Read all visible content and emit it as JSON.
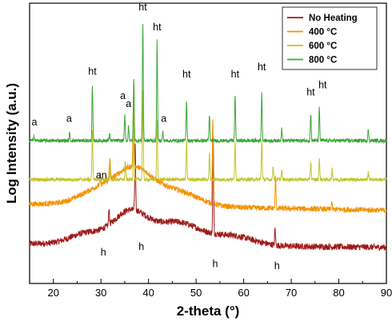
{
  "chart_data": {
    "type": "line",
    "xlabel": "2-theta (°)",
    "ylabel": "Log Intensity (a.u.)",
    "xlim": [
      15,
      90
    ],
    "xticks": [
      20,
      30,
      40,
      50,
      60,
      70,
      80,
      90
    ],
    "y_ticks_shown": false,
    "legend_position": "top-right",
    "series": [
      {
        "name": "No Heating",
        "color": "#a01818",
        "baseline": 0.4,
        "noise": 0.35,
        "humps": [
          {
            "x": 27,
            "amp": 1.2,
            "w": 5
          },
          {
            "x": 36,
            "amp": 3.5,
            "w": 5
          },
          {
            "x": 46,
            "amp": 2.5,
            "w": 7
          },
          {
            "x": 58,
            "amp": 1.0,
            "w": 6
          }
        ],
        "peaks": [
          {
            "x": 31.7,
            "h": 1.8
          },
          {
            "x": 37.2,
            "h": 7.5
          },
          {
            "x": 53.6,
            "h": 10.5
          },
          {
            "x": 66.6,
            "h": 1.8
          }
        ],
        "y_end": 0.0
      },
      {
        "name": "400 °C",
        "color": "#f39200",
        "baseline": 4.8,
        "noise": 0.3,
        "humps": [
          {
            "x": 30,
            "amp": 1.8,
            "w": 6
          },
          {
            "x": 37,
            "amp": 3.4,
            "w": 5
          },
          {
            "x": 45,
            "amp": 1.8,
            "w": 7
          }
        ],
        "peaks": [
          {
            "x": 29.8,
            "h": 1.2
          },
          {
            "x": 31.9,
            "h": 2.2
          },
          {
            "x": 36.8,
            "h": 6.5
          },
          {
            "x": 53.5,
            "h": 9.5
          },
          {
            "x": 66.7,
            "h": 3.5
          },
          {
            "x": 78.5,
            "h": 0.8
          }
        ],
        "y_end": 4.1
      },
      {
        "name": "600 °C",
        "color": "#c3c32a",
        "baseline": 7.5,
        "noise": 0.2,
        "humps": [],
        "peaks": [
          {
            "x": 28.2,
            "h": 5.5
          },
          {
            "x": 31.8,
            "h": 2.2
          },
          {
            "x": 35.1,
            "h": 2.0
          },
          {
            "x": 36.9,
            "h": 8.5
          },
          {
            "x": 38.8,
            "h": 10.0
          },
          {
            "x": 41.8,
            "h": 6.5
          },
          {
            "x": 48.0,
            "h": 4.2
          },
          {
            "x": 52.8,
            "h": 2.8
          },
          {
            "x": 58.2,
            "h": 4.2
          },
          {
            "x": 63.8,
            "h": 4.4
          },
          {
            "x": 66.2,
            "h": 1.5
          },
          {
            "x": 68.0,
            "h": 1.0
          },
          {
            "x": 74.1,
            "h": 2.0
          },
          {
            "x": 75.9,
            "h": 2.3
          },
          {
            "x": 78.6,
            "h": 1.2
          },
          {
            "x": 86.2,
            "h": 0.9
          }
        ],
        "y_end": 7.5
      },
      {
        "name": "800 °C",
        "color": "#3aa635",
        "baseline": 11.8,
        "noise": 0.2,
        "humps": [],
        "peaks": [
          {
            "x": 15.9,
            "h": 0.6
          },
          {
            "x": 23.4,
            "h": 0.8
          },
          {
            "x": 28.2,
            "h": 6.0
          },
          {
            "x": 31.8,
            "h": 0.8
          },
          {
            "x": 35.0,
            "h": 2.8
          },
          {
            "x": 35.8,
            "h": 1.6
          },
          {
            "x": 36.9,
            "h": 6.8
          },
          {
            "x": 38.8,
            "h": 13.0
          },
          {
            "x": 41.8,
            "h": 11.0
          },
          {
            "x": 43.0,
            "h": 1.0
          },
          {
            "x": 48.0,
            "h": 4.5
          },
          {
            "x": 52.8,
            "h": 2.8
          },
          {
            "x": 58.2,
            "h": 5.0
          },
          {
            "x": 63.8,
            "h": 5.2
          },
          {
            "x": 68.0,
            "h": 1.4
          },
          {
            "x": 74.1,
            "h": 3.0
          },
          {
            "x": 75.9,
            "h": 3.6
          },
          {
            "x": 86.2,
            "h": 1.2
          }
        ],
        "y_end": 11.8
      }
    ],
    "annotations": [
      {
        "text": "ht",
        "x": 38.8,
        "y": 26.2
      },
      {
        "text": "ht",
        "x": 28.2,
        "y": 19.1
      },
      {
        "text": "ht",
        "x": 41.8,
        "y": 24.0
      },
      {
        "text": "ht",
        "x": 48.0,
        "y": 18.8
      },
      {
        "text": "ht",
        "x": 58.2,
        "y": 18.8
      },
      {
        "text": "ht",
        "x": 63.8,
        "y": 19.6
      },
      {
        "text": "ht",
        "x": 74.1,
        "y": 16.8
      },
      {
        "text": "ht",
        "x": 76.6,
        "y": 17.6
      },
      {
        "text": "a",
        "x": 16.0,
        "y": 13.5
      },
      {
        "text": "a",
        "x": 23.3,
        "y": 13.9
      },
      {
        "text": "a",
        "x": 34.6,
        "y": 16.4
      },
      {
        "text": "a",
        "x": 35.8,
        "y": 15.5
      },
      {
        "text": "a",
        "x": 43.2,
        "y": 13.9
      },
      {
        "text": "an",
        "x": 30.1,
        "y": 7.6
      },
      {
        "text": "h",
        "x": 30.5,
        "y": -0.9
      },
      {
        "text": "h",
        "x": 38.5,
        "y": -0.3
      },
      {
        "text": "h",
        "x": 54.0,
        "y": -2.2
      },
      {
        "text": "h",
        "x": 67.0,
        "y": -2.4
      }
    ]
  }
}
